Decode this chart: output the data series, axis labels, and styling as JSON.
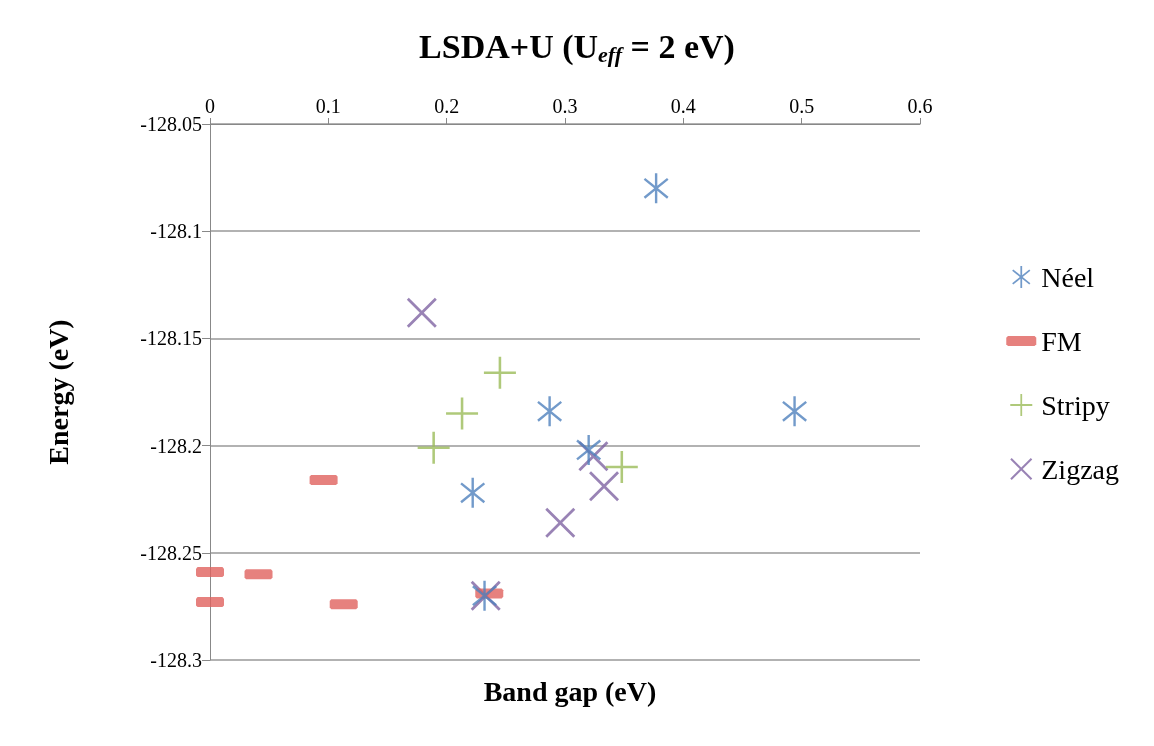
{
  "chart_data": {
    "type": "scatter",
    "title": "LSDA+U (U$_{eff}$ = 2 eV)",
    "xlabel": "Band gap (eV)",
    "ylabel": "Energy (eV)",
    "xlim": [
      0,
      0.6
    ],
    "xticks": [
      0,
      0.1,
      0.2,
      0.3,
      0.4,
      0.5,
      0.6
    ],
    "ylim": [
      -128.3,
      -128.05
    ],
    "yticks": [
      -128.3,
      -128.25,
      -128.2,
      -128.15,
      -128.1,
      -128.05
    ],
    "grid": "y",
    "legend": "right",
    "series": [
      {
        "name": "Néel",
        "color": "#4f81bd",
        "x": [
          0.377,
          0.287,
          0.494,
          0.32,
          0.222,
          0.232
        ],
        "values": [
          -128.08,
          -128.184,
          -128.184,
          -128.202,
          -128.222,
          -128.27
        ]
      },
      {
        "name": "FM",
        "color": "#e0625e",
        "x": [
          0,
          0.041,
          0,
          0.096,
          0.113,
          0.236
        ],
        "values": [
          -128.259,
          -128.26,
          -128.273,
          -128.216,
          -128.274,
          -128.269
        ]
      },
      {
        "name": "Stripy",
        "color": "#9bbb59",
        "x": [
          0.245,
          0.213,
          0.189,
          0.348
        ],
        "values": [
          -128.166,
          -128.185,
          -128.201,
          -128.21
        ]
      },
      {
        "name": "Zigzag",
        "color": "#8064a2",
        "x": [
          0.179,
          0.324,
          0.333,
          0.296,
          0.233
        ],
        "values": [
          -128.138,
          -128.205,
          -128.219,
          -128.236,
          -128.27
        ]
      }
    ]
  }
}
